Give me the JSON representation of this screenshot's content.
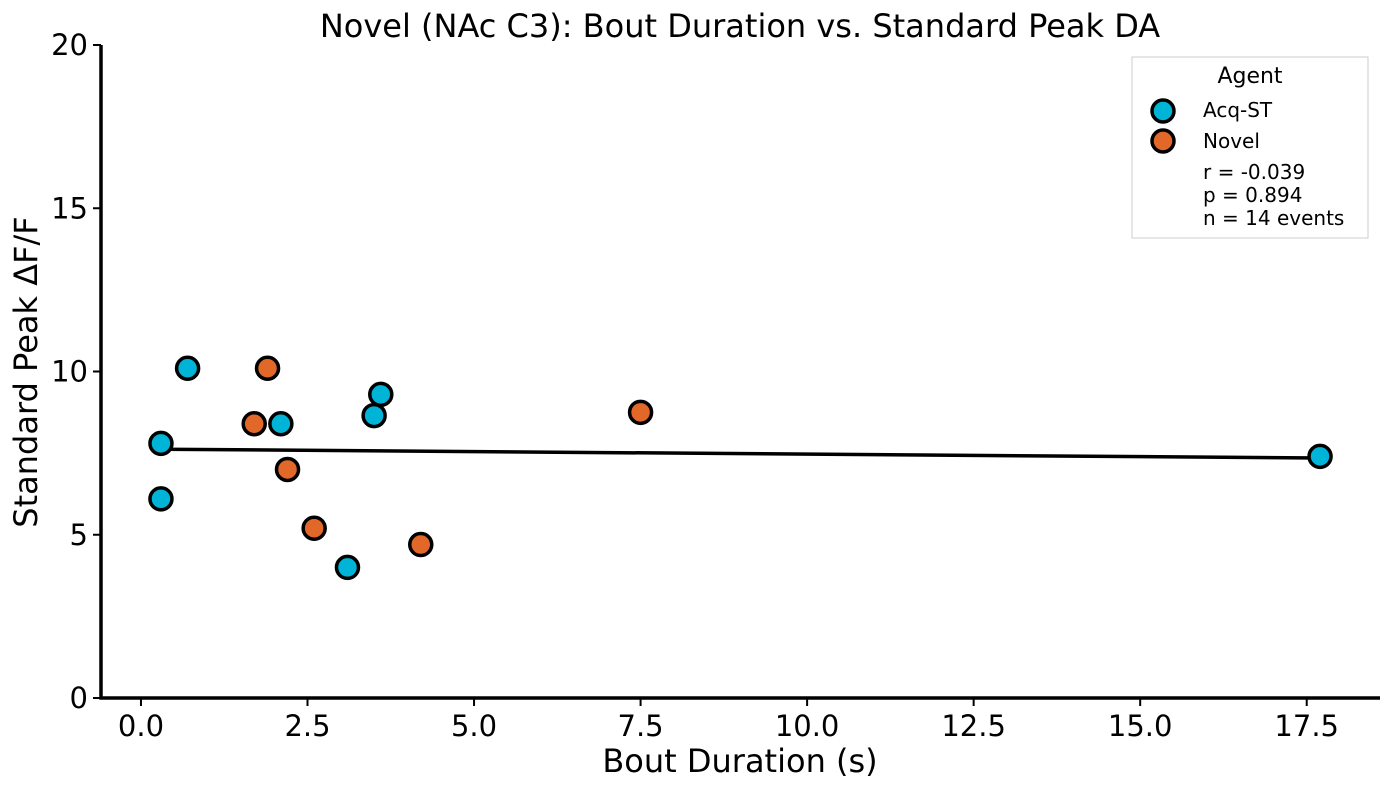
{
  "chart_data": {
    "type": "scatter",
    "title": "Novel (NAc C3): Bout Duration vs. Standard Peak DA",
    "xlabel": "Bout Duration (s)",
    "ylabel": "Standard Peak ΔF/F",
    "xlim": [
      -0.6,
      18.6
    ],
    "ylim": [
      0,
      20
    ],
    "xticks": [
      0.0,
      2.5,
      5.0,
      7.5,
      10.0,
      12.5,
      15.0,
      17.5
    ],
    "xtick_labels": [
      "0.0",
      "2.5",
      "5.0",
      "7.5",
      "10.0",
      "12.5",
      "15.0",
      "17.5"
    ],
    "yticks": [
      0,
      5,
      10,
      15,
      20
    ],
    "ytick_labels": [
      "0",
      "5",
      "10",
      "15",
      "20"
    ],
    "legend": {
      "title": "Agent",
      "position": "top-right",
      "stats": [
        "r = -0.039",
        "p = 0.894",
        "n = 14 events"
      ]
    },
    "series": [
      {
        "name": "Acq-ST",
        "color": "#00b4d8",
        "points": [
          {
            "x": 0.3,
            "y": 7.8
          },
          {
            "x": 0.3,
            "y": 6.1
          },
          {
            "x": 0.7,
            "y": 10.1
          },
          {
            "x": 2.1,
            "y": 8.4
          },
          {
            "x": 3.1,
            "y": 4.0
          },
          {
            "x": 3.5,
            "y": 8.65
          },
          {
            "x": 3.6,
            "y": 9.3
          },
          {
            "x": 17.7,
            "y": 7.4
          }
        ]
      },
      {
        "name": "Novel",
        "color": "#e2682a",
        "points": [
          {
            "x": 1.7,
            "y": 8.4
          },
          {
            "x": 1.9,
            "y": 10.1
          },
          {
            "x": 2.2,
            "y": 7.0
          },
          {
            "x": 2.6,
            "y": 5.2
          },
          {
            "x": 4.2,
            "y": 4.7
          },
          {
            "x": 7.5,
            "y": 8.75
          }
        ]
      }
    ],
    "fit_line": {
      "x": [
        0.3,
        17.7
      ],
      "y": [
        7.62,
        7.35
      ],
      "color": "#000000"
    }
  }
}
